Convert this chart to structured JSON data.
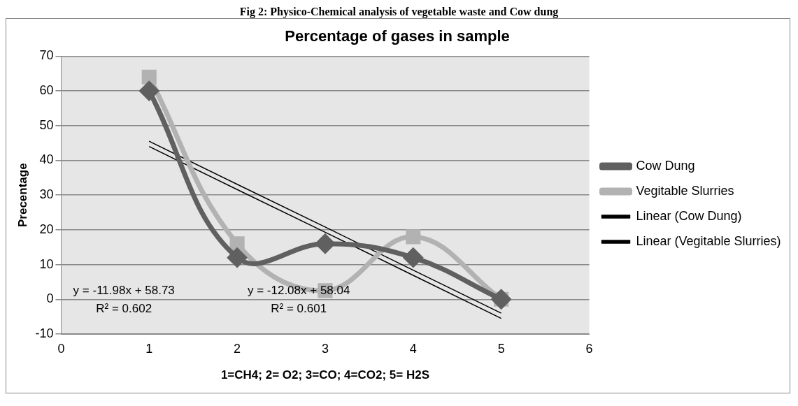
{
  "chart_data": {
    "type": "line",
    "title": "Percentage of gases in sample",
    "xlabel": "1=CH4; 2= O2; 3=CO; 4=CO2; 5= H2S",
    "ylabel": "Precentage",
    "x": [
      1,
      2,
      3,
      4,
      5
    ],
    "xlim": [
      0,
      6
    ],
    "xticks": [
      0,
      1,
      2,
      3,
      4,
      5,
      6
    ],
    "ylim": [
      -10,
      70
    ],
    "yticks": [
      -10,
      0,
      10,
      20,
      30,
      40,
      50,
      60,
      70
    ],
    "grid": "y",
    "legend": "right",
    "series": [
      {
        "name": "Cow Dung",
        "color": "#606060",
        "values": [
          60,
          12,
          16,
          12,
          0
        ],
        "marker": "diamond"
      },
      {
        "name": "Vegitable Slurries",
        "color": "#b2b2b2",
        "values": [
          64,
          16,
          2.5,
          18,
          0
        ],
        "marker": "square"
      },
      {
        "name": "Linear (Cow Dung)",
        "color": "#000000",
        "type": "line",
        "values": [
          45.5,
          33.1,
          20.8,
          8.4,
          -4
        ],
        "marker": "none"
      },
      {
        "name": "Linear (Vegitable Slurries)",
        "color": "#000000",
        "type": "line",
        "values": [
          44,
          31.6,
          19.3,
          6.9,
          -5.5
        ],
        "marker": "none"
      }
    ],
    "annotations": [
      "Fig 2: Physico-Chemical analysis of vegetable waste and Cow dung",
      "y = -12.08x + 58.04",
      "R² = 0.601",
      "y = -11.98x + 58.73",
      "R² = 0.602"
    ]
  }
}
